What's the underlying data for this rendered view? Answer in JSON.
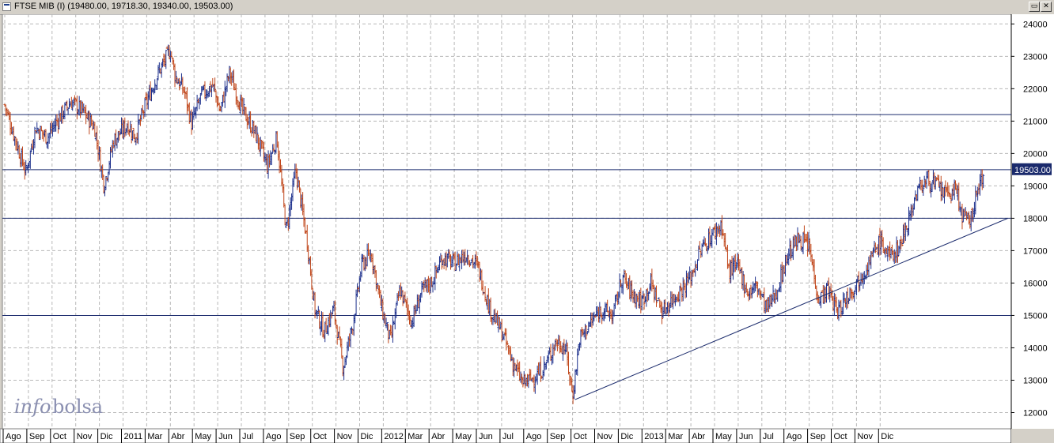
{
  "window": {
    "title": "FTSE MIB (I) (19480.00, 19718.30, 19340.00, 19503.00)",
    "restore_label": "▭",
    "close_label": "✕"
  },
  "watermark": {
    "part1": "info",
    "part2": "bolsa"
  },
  "last_price_label": "19503.00",
  "colors": {
    "up": "#1c2f8c",
    "down": "#c0461a",
    "hline": "#1a2a6c",
    "trend": "#1a2a6c",
    "badge": "#1a2a6c",
    "grid": "#b8b8b8",
    "background": "#ffffff"
  },
  "chart_data": {
    "type": "candlestick",
    "instrument": "FTSE MIB (I)",
    "last_bar": {
      "open": 19480.0,
      "high": 19718.3,
      "low": 19340.0,
      "close": 19503.0
    },
    "ylim": [
      11500,
      24300
    ],
    "y_ticks": [
      12000,
      13000,
      14000,
      15000,
      16000,
      17000,
      18000,
      19000,
      20000,
      21000,
      22000,
      23000,
      24000
    ],
    "x_labels": [
      "Ago",
      "Sep",
      "Oct",
      "Nov",
      "Dic",
      "2011",
      "Mar",
      "Abr",
      "May",
      "Jun",
      "Jul",
      "Ago",
      "Sep",
      "Oct",
      "Nov",
      "Dic",
      "2012",
      "Mar",
      "Abr",
      "May",
      "Jun",
      "Jul",
      "Ago",
      "Sep",
      "Oct",
      "Nov",
      "Dic",
      "2013",
      "Mar",
      "Abr",
      "May",
      "Jun",
      "Jul",
      "Ago",
      "Sep",
      "Oct",
      "Nov",
      "Dic"
    ],
    "horizontal_lines": [
      21200,
      19500,
      18000,
      15000
    ],
    "trendline": {
      "from": {
        "month": "Jul 2012",
        "value": 12400
      },
      "to": {
        "month": "Dic 2013",
        "value": 18000
      }
    },
    "price_path": [
      {
        "m": 0,
        "v": 21500
      },
      {
        "m": 0.5,
        "v": 20300
      },
      {
        "m": 0.9,
        "v": 19400
      },
      {
        "m": 1.3,
        "v": 20800
      },
      {
        "m": 1.8,
        "v": 20500
      },
      {
        "m": 2.2,
        "v": 21000
      },
      {
        "m": 2.8,
        "v": 21600
      },
      {
        "m": 3.3,
        "v": 21300
      },
      {
        "m": 3.8,
        "v": 20800
      },
      {
        "m": 4.2,
        "v": 19000
      },
      {
        "m": 4.6,
        "v": 20400
      },
      {
        "m": 5.2,
        "v": 20900
      },
      {
        "m": 5.5,
        "v": 20500
      },
      {
        "m": 6.0,
        "v": 21600
      },
      {
        "m": 6.5,
        "v": 22500
      },
      {
        "m": 7.0,
        "v": 23200
      },
      {
        "m": 7.2,
        "v": 22400
      },
      {
        "m": 7.6,
        "v": 21900
      },
      {
        "m": 7.9,
        "v": 20900
      },
      {
        "m": 8.3,
        "v": 21800
      },
      {
        "m": 8.8,
        "v": 22100
      },
      {
        "m": 9.1,
        "v": 21300
      },
      {
        "m": 9.5,
        "v": 22500
      },
      {
        "m": 10.0,
        "v": 21400
      },
      {
        "m": 10.6,
        "v": 20600
      },
      {
        "m": 11.1,
        "v": 19600
      },
      {
        "m": 11.5,
        "v": 20500
      },
      {
        "m": 11.9,
        "v": 17600
      },
      {
        "m": 12.3,
        "v": 19500
      },
      {
        "m": 12.8,
        "v": 17200
      },
      {
        "m": 13.1,
        "v": 15200
      },
      {
        "m": 13.5,
        "v": 14500
      },
      {
        "m": 13.9,
        "v": 15200
      },
      {
        "m": 14.3,
        "v": 13400
      },
      {
        "m": 14.7,
        "v": 14700
      },
      {
        "m": 15.1,
        "v": 16600
      },
      {
        "m": 15.5,
        "v": 16900
      },
      {
        "m": 15.9,
        "v": 15300
      },
      {
        "m": 16.3,
        "v": 14200
      },
      {
        "m": 16.7,
        "v": 15800
      },
      {
        "m": 17.2,
        "v": 14800
      },
      {
        "m": 17.6,
        "v": 15700
      },
      {
        "m": 18.1,
        "v": 16100
      },
      {
        "m": 18.5,
        "v": 16800
      },
      {
        "m": 19.0,
        "v": 16600
      },
      {
        "m": 19.5,
        "v": 16900
      },
      {
        "m": 20.0,
        "v": 16500
      },
      {
        "m": 20.5,
        "v": 15200
      },
      {
        "m": 21.0,
        "v": 14500
      },
      {
        "m": 21.5,
        "v": 13500
      },
      {
        "m": 21.9,
        "v": 12900
      },
      {
        "m": 22.4,
        "v": 13100
      },
      {
        "m": 22.8,
        "v": 13400
      },
      {
        "m": 23.3,
        "v": 14200
      },
      {
        "m": 23.7,
        "v": 14000
      },
      {
        "m": 24.0,
        "v": 12500
      },
      {
        "m": 24.3,
        "v": 14300
      },
      {
        "m": 24.7,
        "v": 14700
      },
      {
        "m": 25.2,
        "v": 15200
      },
      {
        "m": 25.7,
        "v": 15000
      },
      {
        "m": 26.1,
        "v": 16200
      },
      {
        "m": 26.5,
        "v": 15700
      },
      {
        "m": 26.9,
        "v": 15400
      },
      {
        "m": 27.3,
        "v": 16000
      },
      {
        "m": 27.8,
        "v": 15100
      },
      {
        "m": 28.2,
        "v": 15500
      },
      {
        "m": 28.6,
        "v": 15800
      },
      {
        "m": 29.0,
        "v": 16200
      },
      {
        "m": 29.4,
        "v": 17000
      },
      {
        "m": 29.9,
        "v": 17500
      },
      {
        "m": 30.3,
        "v": 17800
      },
      {
        "m": 30.6,
        "v": 16400
      },
      {
        "m": 31.0,
        "v": 16500
      },
      {
        "m": 31.4,
        "v": 15700
      },
      {
        "m": 31.8,
        "v": 15900
      },
      {
        "m": 32.2,
        "v": 15200
      },
      {
        "m": 32.6,
        "v": 15700
      },
      {
        "m": 33.1,
        "v": 16900
      },
      {
        "m": 33.6,
        "v": 17400
      },
      {
        "m": 34.0,
        "v": 17100
      },
      {
        "m": 34.4,
        "v": 15500
      },
      {
        "m": 34.8,
        "v": 15800
      },
      {
        "m": 35.2,
        "v": 15100
      },
      {
        "m": 35.6,
        "v": 15600
      },
      {
        "m": 36.0,
        "v": 16000
      },
      {
        "m": 36.5,
        "v": 16600
      },
      {
        "m": 37.0,
        "v": 17300
      },
      {
        "m": 37.4,
        "v": 16800
      },
      {
        "m": 37.8,
        "v": 17100
      },
      {
        "m": 38.2,
        "v": 18000
      },
      {
        "m": 38.6,
        "v": 18900
      },
      {
        "m": 39.0,
        "v": 19200
      },
      {
        "m": 39.4,
        "v": 19000
      },
      {
        "m": 39.8,
        "v": 18700
      },
      {
        "m": 40.2,
        "v": 18900
      },
      {
        "m": 40.5,
        "v": 18000
      },
      {
        "m": 40.8,
        "v": 17900
      },
      {
        "m": 41.1,
        "v": 18800
      },
      {
        "m": 41.4,
        "v": 19500
      }
    ]
  }
}
